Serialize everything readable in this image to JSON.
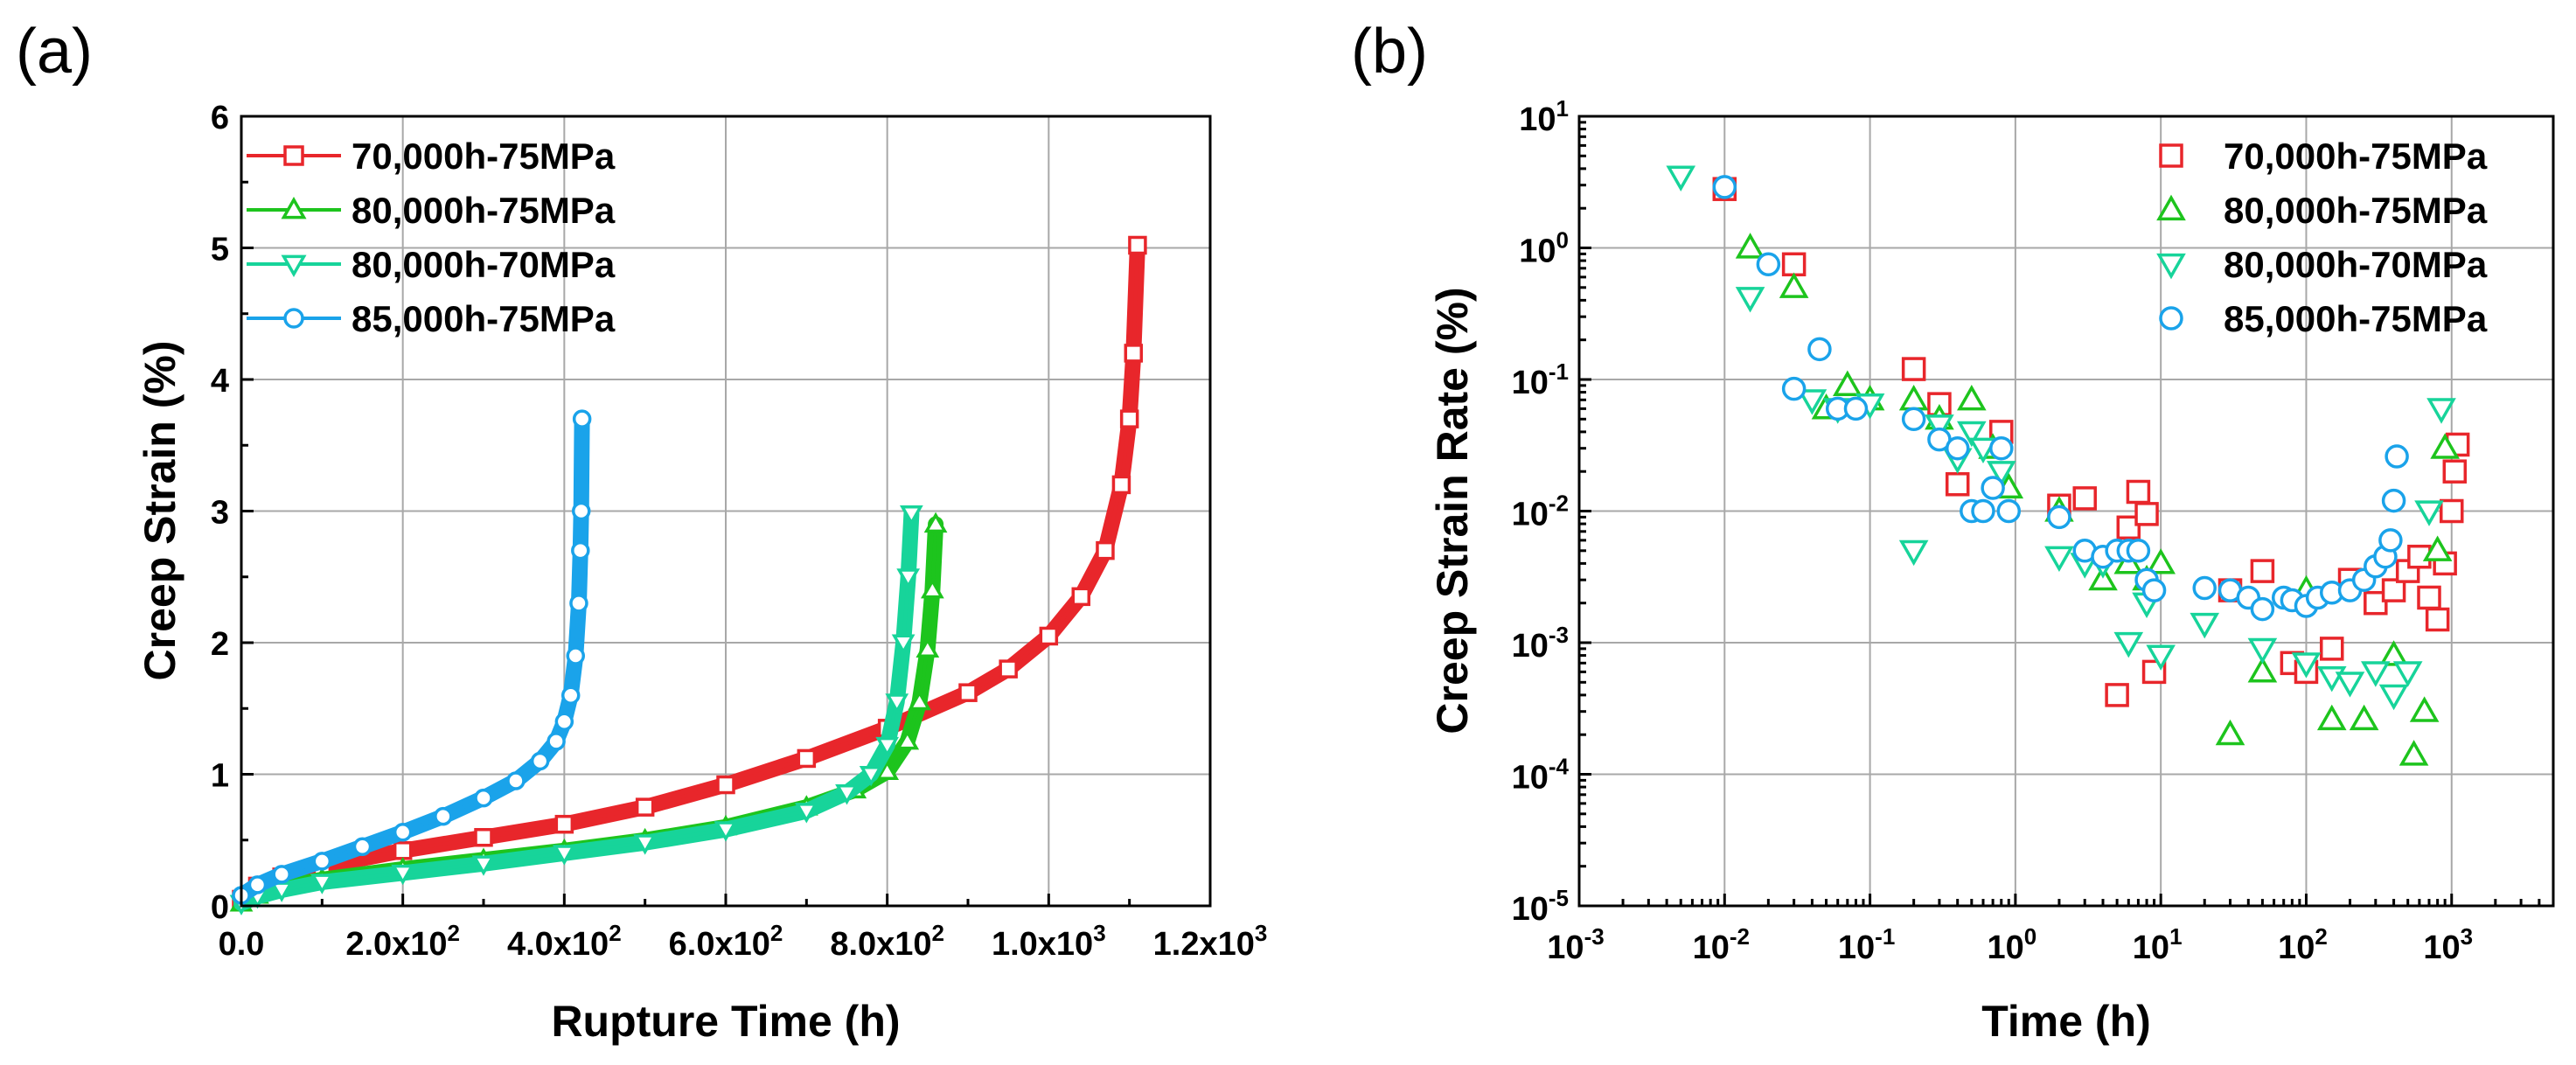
{
  "panels": {
    "a_label": "(a)",
    "b_label": "(b)"
  },
  "colors": {
    "s70k75": "#e8262b",
    "s80k75": "#1dc41d",
    "s80k70": "#17d49a",
    "s85k75": "#1aa3ea"
  },
  "chart_data": [
    {
      "type": "line",
      "panel": "(a)",
      "title": "",
      "xlabel": "Rupture Time (h)",
      "ylabel": "Creep Strain (%)",
      "xlim": [
        0,
        1200
      ],
      "ylim": [
        0,
        6
      ],
      "grid": true,
      "legend_position": "top-left",
      "x_ticks": [
        {
          "value": 0,
          "base": "0.0",
          "exp": ""
        },
        {
          "value": 200,
          "base": "2.0x10",
          "exp": "2"
        },
        {
          "value": 400,
          "base": "4.0x10",
          "exp": "2"
        },
        {
          "value": 600,
          "base": "6.0x10",
          "exp": "2"
        },
        {
          "value": 800,
          "base": "8.0x10",
          "exp": "2"
        },
        {
          "value": 1000,
          "base": "1.0x10",
          "exp": "3"
        },
        {
          "value": 1200,
          "base": "1.2x10",
          "exp": "3"
        }
      ],
      "y_ticks": [
        {
          "value": 0,
          "label": "0"
        },
        {
          "value": 1,
          "label": "1"
        },
        {
          "value": 2,
          "label": "2"
        },
        {
          "value": 3,
          "label": "3"
        },
        {
          "value": 4,
          "label": "4"
        },
        {
          "value": 5,
          "label": "5"
        },
        {
          "value": 6,
          "label": "6"
        }
      ],
      "series": [
        {
          "name": "70,000h-75MPa",
          "color": "#e8262b",
          "marker": "square",
          "x": [
            0,
            20,
            50,
            100,
            200,
            300,
            400,
            500,
            600,
            700,
            800,
            900,
            950,
            1000,
            1040,
            1070,
            1090,
            1100,
            1105,
            1110
          ],
          "y": [
            0.05,
            0.15,
            0.22,
            0.3,
            0.42,
            0.52,
            0.62,
            0.75,
            0.92,
            1.12,
            1.35,
            1.62,
            1.8,
            2.05,
            2.35,
            2.7,
            3.2,
            3.7,
            4.2,
            5.02
          ]
        },
        {
          "name": "80,000h-75MPa",
          "color": "#1dc41d",
          "marker": "triangle-up",
          "x": [
            0,
            20,
            50,
            100,
            200,
            300,
            400,
            500,
            600,
            700,
            760,
            800,
            825,
            840,
            850,
            856,
            860
          ],
          "y": [
            0.02,
            0.08,
            0.14,
            0.2,
            0.28,
            0.35,
            0.42,
            0.5,
            0.6,
            0.75,
            0.88,
            1.02,
            1.25,
            1.55,
            1.95,
            2.4,
            2.9
          ]
        },
        {
          "name": "80,000h-70MPa",
          "color": "#17d49a",
          "marker": "triangle-down",
          "x": [
            0,
            20,
            50,
            100,
            200,
            300,
            400,
            500,
            600,
            700,
            750,
            780,
            800,
            812,
            820,
            826,
            830
          ],
          "y": [
            0.02,
            0.07,
            0.12,
            0.18,
            0.25,
            0.32,
            0.4,
            0.48,
            0.58,
            0.72,
            0.86,
            1.0,
            1.22,
            1.55,
            2.0,
            2.5,
            2.98
          ]
        },
        {
          "name": "85,000h-75MPa",
          "color": "#1aa3ea",
          "marker": "circle",
          "x": [
            0,
            20,
            50,
            100,
            150,
            200,
            250,
            300,
            340,
            370,
            390,
            400,
            408,
            414,
            418,
            420,
            421,
            422
          ],
          "y": [
            0.08,
            0.16,
            0.24,
            0.34,
            0.45,
            0.56,
            0.68,
            0.82,
            0.95,
            1.1,
            1.25,
            1.4,
            1.6,
            1.9,
            2.3,
            2.7,
            3.0,
            3.7
          ]
        }
      ]
    },
    {
      "type": "scatter",
      "panel": "(b)",
      "title": "",
      "xlabel": "Time (h)",
      "ylabel": "Creep Strain Rate (%)",
      "xscale": "log",
      "yscale": "log",
      "xlim": [
        0.001,
        5000
      ],
      "ylim": [
        1e-05,
        10
      ],
      "grid": true,
      "legend_position": "top-right",
      "x_ticks": [
        {
          "value": 0.001,
          "base": "10",
          "exp": "-3"
        },
        {
          "value": 0.01,
          "base": "10",
          "exp": "-2"
        },
        {
          "value": 0.1,
          "base": "10",
          "exp": "-1"
        },
        {
          "value": 1,
          "base": "10",
          "exp": "0"
        },
        {
          "value": 10,
          "base": "10",
          "exp": "1"
        },
        {
          "value": 100,
          "base": "10",
          "exp": "2"
        },
        {
          "value": 1000,
          "base": "10",
          "exp": "3"
        }
      ],
      "y_ticks": [
        {
          "value": 1e-05,
          "base": "10",
          "exp": "-5"
        },
        {
          "value": 0.0001,
          "base": "10",
          "exp": "-4"
        },
        {
          "value": 0.001,
          "base": "10",
          "exp": "-3"
        },
        {
          "value": 0.01,
          "base": "10",
          "exp": "-2"
        },
        {
          "value": 0.1,
          "base": "10",
          "exp": "-1"
        },
        {
          "value": 1,
          "base": "10",
          "exp": "0"
        },
        {
          "value": 10,
          "base": "10",
          "exp": "1"
        }
      ],
      "series": [
        {
          "name": "70,000h-75MPa",
          "color": "#e8262b",
          "marker": "square",
          "x": [
            0.01,
            0.03,
            0.2,
            0.3,
            0.4,
            0.8,
            2,
            3,
            5,
            6,
            7,
            8,
            9,
            30,
            50,
            80,
            100,
            150,
            200,
            300,
            400,
            500,
            600,
            700,
            800,
            900,
            1000,
            1050,
            1100
          ],
          "y": [
            2.8,
            0.75,
            0.12,
            0.065,
            0.016,
            0.04,
            0.011,
            0.0125,
            0.0004,
            0.0075,
            0.014,
            0.0095,
            0.0006,
            0.0025,
            0.0035,
            0.0007,
            0.0006,
            0.0009,
            0.003,
            0.002,
            0.0025,
            0.0035,
            0.0045,
            0.0022,
            0.0015,
            0.004,
            0.01,
            0.02,
            0.032
          ]
        },
        {
          "name": "80,000h-75MPa",
          "color": "#1dc41d",
          "marker": "triangle-up",
          "x": [
            0.015,
            0.03,
            0.05,
            0.07,
            0.1,
            0.2,
            0.3,
            0.5,
            0.7,
            0.9,
            2,
            4,
            6,
            8,
            10,
            30,
            50,
            100,
            150,
            250,
            400,
            550,
            650,
            800,
            900
          ],
          "y": [
            1.0,
            0.5,
            0.06,
            0.09,
            0.07,
            0.07,
            0.05,
            0.07,
            0.03,
            0.015,
            0.01,
            0.003,
            0.004,
            0.003,
            0.004,
            0.0002,
            0.0006,
            0.0025,
            0.00026,
            0.00026,
            0.0008,
            0.00014,
            0.0003,
            0.005,
            0.03
          ]
        },
        {
          "name": "80,000h-70MPa",
          "color": "#17d49a",
          "marker": "triangle-down",
          "x": [
            0.005,
            0.015,
            0.04,
            0.06,
            0.1,
            0.2,
            0.3,
            0.4,
            0.5,
            0.6,
            0.8,
            2,
            3,
            4,
            6,
            8,
            10,
            20,
            50,
            100,
            150,
            200,
            300,
            400,
            500,
            700,
            850
          ],
          "y": [
            3.5,
            0.42,
            0.07,
            0.06,
            0.065,
            0.005,
            0.045,
            0.025,
            0.04,
            0.03,
            0.02,
            0.0045,
            0.004,
            0.004,
            0.001,
            0.002,
            0.0008,
            0.0014,
            0.0009,
            0.0007,
            0.00055,
            0.0005,
            0.0006,
            0.0004,
            0.0006,
            0.01,
            0.06
          ]
        },
        {
          "name": "85,000h-75MPa",
          "color": "#1aa3ea",
          "marker": "circle",
          "x": [
            0.01,
            0.02,
            0.03,
            0.045,
            0.06,
            0.08,
            0.2,
            0.3,
            0.4,
            0.5,
            0.6,
            0.7,
            0.8,
            0.9,
            2,
            3,
            4,
            5,
            6,
            7,
            8,
            9,
            20,
            30,
            40,
            50,
            70,
            80,
            100,
            120,
            150,
            200,
            250,
            300,
            350,
            380,
            400,
            420
          ],
          "y": [
            2.9,
            0.75,
            0.085,
            0.17,
            0.06,
            0.06,
            0.05,
            0.035,
            0.03,
            0.01,
            0.01,
            0.015,
            0.03,
            0.01,
            0.009,
            0.005,
            0.0045,
            0.005,
            0.005,
            0.005,
            0.003,
            0.0025,
            0.0026,
            0.0025,
            0.0022,
            0.0018,
            0.0022,
            0.0021,
            0.0019,
            0.0022,
            0.0024,
            0.0025,
            0.003,
            0.0038,
            0.0045,
            0.006,
            0.012,
            0.026
          ]
        }
      ]
    }
  ]
}
